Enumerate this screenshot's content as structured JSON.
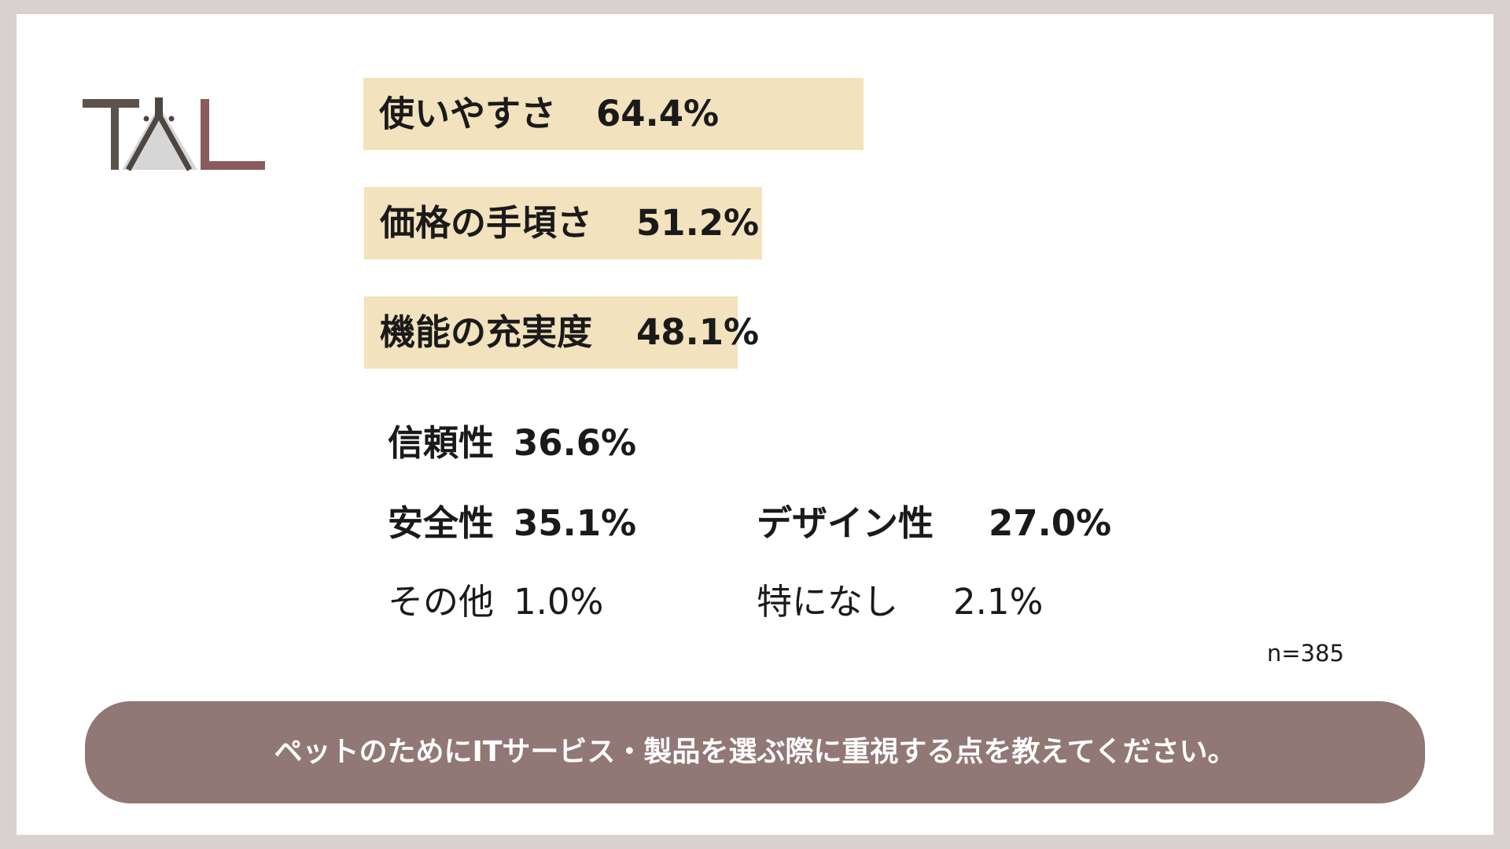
{
  "logo": {
    "text": "TAL",
    "colors": {
      "t": "#5c534b",
      "a_fill": "#d6d6d6",
      "a_stroke": "#4e4640",
      "l": "#8a5a5c"
    }
  },
  "colors": {
    "bar": "#f2e2bd",
    "question_bg": "#917874",
    "frame": "#d9d1cf"
  },
  "chart_data": {
    "type": "bar",
    "title": "",
    "xlabel": "",
    "ylabel": "",
    "xlim": [
      0,
      100
    ],
    "unit": "%",
    "series": [
      {
        "categories": [
          "使いやすさ",
          "価格の手頃さ",
          "機能の充実度"
        ],
        "values": [
          64.4,
          51.2,
          48.1
        ],
        "labels": [
          "64.4%",
          "51.2%",
          "48.1%"
        ]
      }
    ],
    "other_items": [
      {
        "category": "信頼性",
        "value": 36.6,
        "label": "36.6%"
      },
      {
        "category": "安全性",
        "value": 35.1,
        "label": "35.1%"
      },
      {
        "category": "デザイン性",
        "value": 27.0,
        "label": "27.0%"
      },
      {
        "category": "その他",
        "value": 1.0,
        "label": "1.0%"
      },
      {
        "category": "特になし",
        "value": 2.1,
        "label": "2.1%"
      }
    ]
  },
  "sample_size": "n=385",
  "question": "ペットのためにITサービス・製品を選ぶ際に重視する点を教えてください。"
}
